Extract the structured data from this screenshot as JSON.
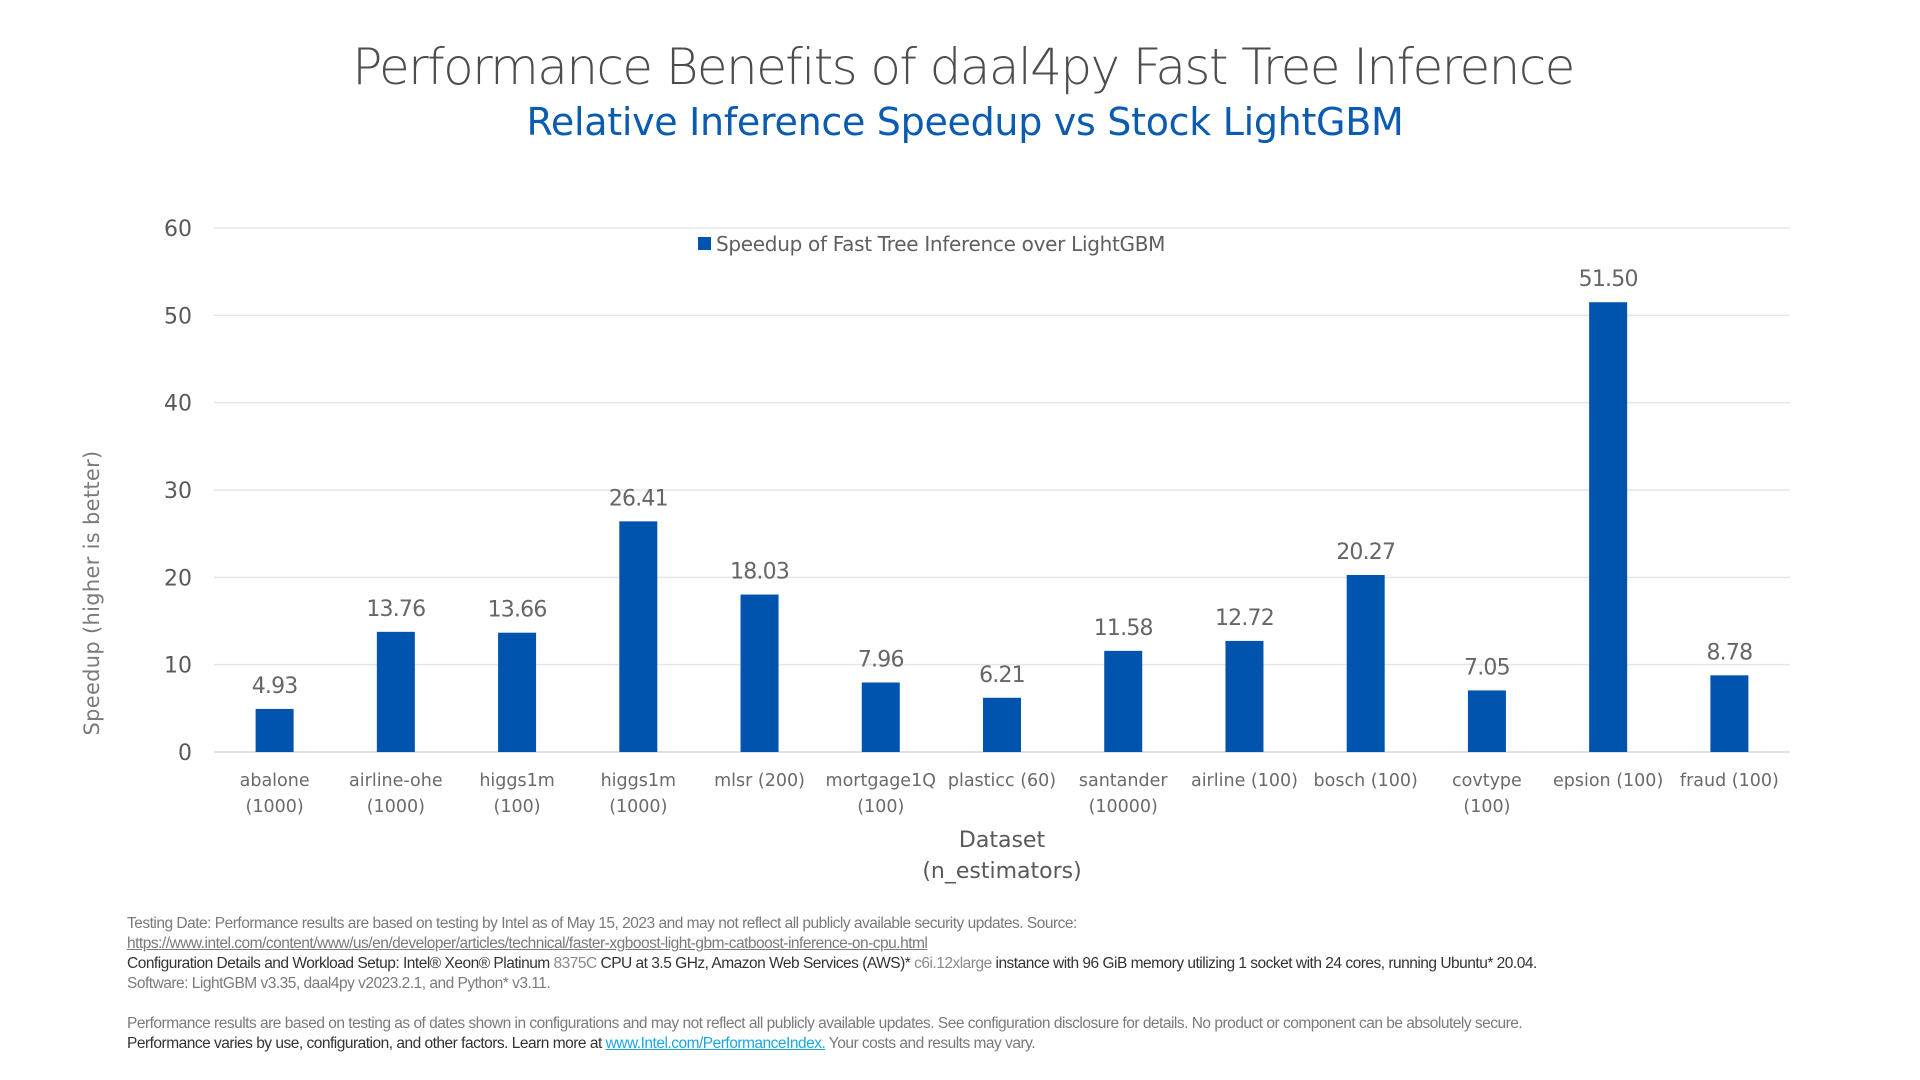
{
  "header": {
    "title": "Performance Benefits of daal4py Fast Tree Inference",
    "subtitle": "Relative Inference Speedup vs Stock LightGBM"
  },
  "chart_data": {
    "type": "bar",
    "title": "Performance Benefits of daal4py Fast Tree Inference",
    "subtitle": "Relative Inference Speedup vs Stock LightGBM",
    "xlabel": [
      "Dataset",
      "(n_estimators)"
    ],
    "ylabel": "Speedup (higher is better)",
    "ylim": [
      0,
      60
    ],
    "yticks": [
      0,
      10,
      20,
      30,
      40,
      50,
      60
    ],
    "grid": true,
    "legend": {
      "position": "top-center",
      "entries": [
        "Speedup of Fast Tree Inference over LightGBM"
      ]
    },
    "categories": [
      [
        "abalone",
        "(1000)"
      ],
      [
        "airline-ohe",
        "(1000)"
      ],
      [
        "higgs1m",
        "(100)"
      ],
      [
        "higgs1m",
        "(1000)"
      ],
      [
        "mlsr (200)"
      ],
      [
        "mortgage1Q",
        "(100)"
      ],
      [
        "plasticc (60)"
      ],
      [
        "santander",
        "(10000)"
      ],
      [
        "airline (100)"
      ],
      [
        "bosch (100)"
      ],
      [
        "covtype",
        "(100)"
      ],
      [
        "epsion (100)"
      ],
      [
        "fraud (100)"
      ]
    ],
    "series": [
      {
        "name": "Speedup of Fast Tree Inference over LightGBM",
        "color": "#0054ae",
        "values": [
          4.93,
          13.76,
          13.66,
          26.41,
          18.03,
          7.96,
          6.21,
          11.58,
          12.72,
          20.27,
          7.05,
          51.5,
          8.78
        ],
        "labels": [
          "4.93",
          "13.76",
          "13.66",
          "26.41",
          "18.03",
          "7.96",
          "6.21",
          "11.58",
          "12.72",
          "20.27",
          "7.05",
          "51.50",
          "8.78"
        ]
      }
    ]
  },
  "footer": {
    "testing_date": "Testing Date: Performance results are based on testing by Intel as of May 15, 2023 and may not reflect all publicly available security updates. Source:",
    "source_url": "https://www.intel.com/content/www/us/en/developer/articles/technical/faster-xgboost-light-gbm-catboost-inference-on-cpu.html",
    "config_prefix": "Configuration Details and Workload Setup:  Intel® Xeon® Platinum ",
    "config_cpu": "8375C",
    "config_mid": " CPU at 3.5 GHz, Amazon Web Services (AWS)* ",
    "config_instance": "c6i.12xlarge",
    "config_suffix": " instance with 96 GiB memory utilizing 1 socket with 24 cores, running Ubuntu* 20.04.",
    "software": "Software: LightGBM v3.35, daal4py v2023.2.1, and Python* v3.11.",
    "disclaimer": "Performance results are based on testing as of dates shown in configurations and may not reflect all publicly available updates. See configuration disclosure for details.  No product or component can be absolutely secure.",
    "perf_prefix": "Performance varies by use, configuration, and other factors. Learn more at ",
    "perf_link": "www.Intel.com/PerformanceIndex.",
    "perf_suffix": " Your costs and results may vary."
  },
  "colors": {
    "bar": "#0054ae",
    "subtitle": "#0b5bb0",
    "grid": "#e3e3e3",
    "text": "#595959",
    "link": "#19a7e0"
  }
}
